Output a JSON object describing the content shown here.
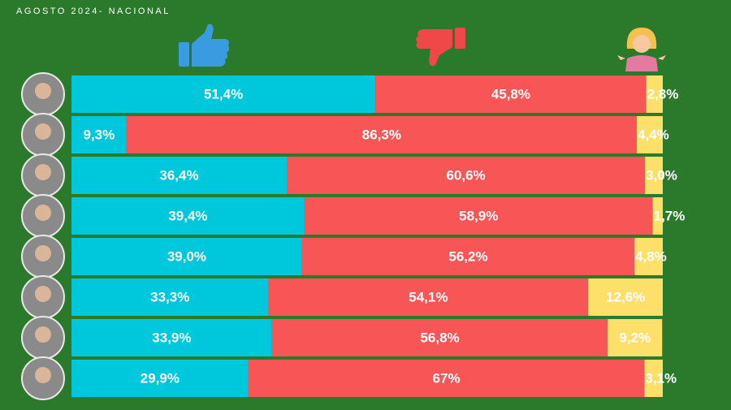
{
  "chart_data": {
    "type": "stacked-bar",
    "orientation": "horizontal",
    "title": "AGOSTO 2024- NACIONAL",
    "categories": [
      null,
      null,
      null,
      null,
      null,
      null,
      null,
      null
    ],
    "xlim": [
      0,
      100
    ],
    "series": [
      {
        "color": "#00c8dc",
        "values": [
          51.4,
          9.3,
          36.4,
          39.4,
          39.0,
          33.3,
          33.9,
          29.9
        ],
        "value_labels": [
          "51,4%",
          "9,3%",
          "36,4%",
          "39,4%",
          "39,0%",
          "33,3%",
          "33,9%",
          "29,9%"
        ]
      },
      {
        "color": "#f85656",
        "values": [
          45.8,
          86.3,
          60.6,
          58.9,
          56.2,
          54.1,
          56.8,
          67
        ],
        "value_labels": [
          "45,8%",
          "86,3%",
          "60,6%",
          "58,9%",
          "56,2%",
          "54,1%",
          "56,8%",
          "67%"
        ]
      },
      {
        "color": "#fde06a",
        "values": [
          2.8,
          4.4,
          3.0,
          1.7,
          4.8,
          12.6,
          9.2,
          3.1
        ],
        "value_labels": [
          "2,8%",
          "4,4%",
          "3,0%",
          "1,7%",
          "4,8%",
          "12,6%",
          "9,2%",
          "3,1%"
        ]
      }
    ]
  }
}
